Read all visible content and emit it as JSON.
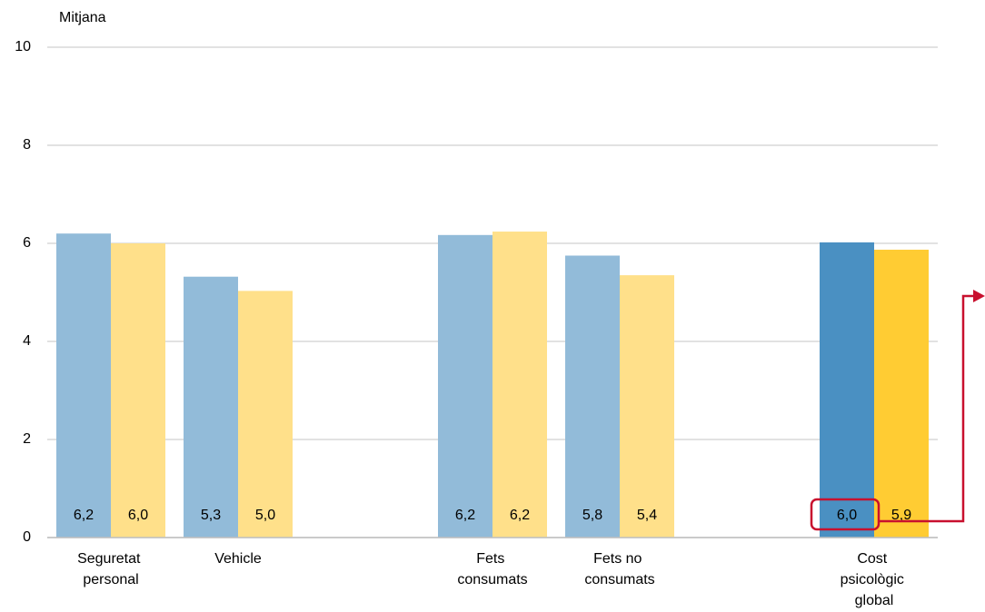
{
  "chart_data": {
    "type": "bar",
    "y_label": "Mitjana",
    "categories": [
      "Seguretat personal",
      "Vehicle",
      null,
      "Fets consumats",
      "Fets no consumats",
      null,
      "Cost psicològic global"
    ],
    "series": [
      {
        "colors": [
          "#92bbd9",
          "#92bbd9",
          null,
          "#92bbd9",
          "#92bbd9",
          null,
          "#4a90c2"
        ],
        "values": [
          6.2,
          5.32,
          null,
          6.17,
          5.75,
          null,
          6.02
        ],
        "value_labels": [
          "6,2",
          "5,3",
          null,
          "6,2",
          "5,8",
          null,
          "6,0"
        ]
      },
      {
        "colors": [
          "#ffe08a",
          "#ffe08a",
          null,
          "#ffe08a",
          "#ffe08a",
          null,
          "#ffcc33"
        ],
        "values": [
          6.0,
          5.03,
          null,
          6.24,
          5.35,
          null,
          5.87
        ],
        "value_labels": [
          "6,0",
          "5,0",
          null,
          "6,2",
          "5,4",
          null,
          "5,9"
        ]
      }
    ],
    "ylim": [
      0,
      10
    ],
    "yticks": [
      0,
      2,
      4,
      6,
      8,
      10
    ],
    "grid": true
  }
}
